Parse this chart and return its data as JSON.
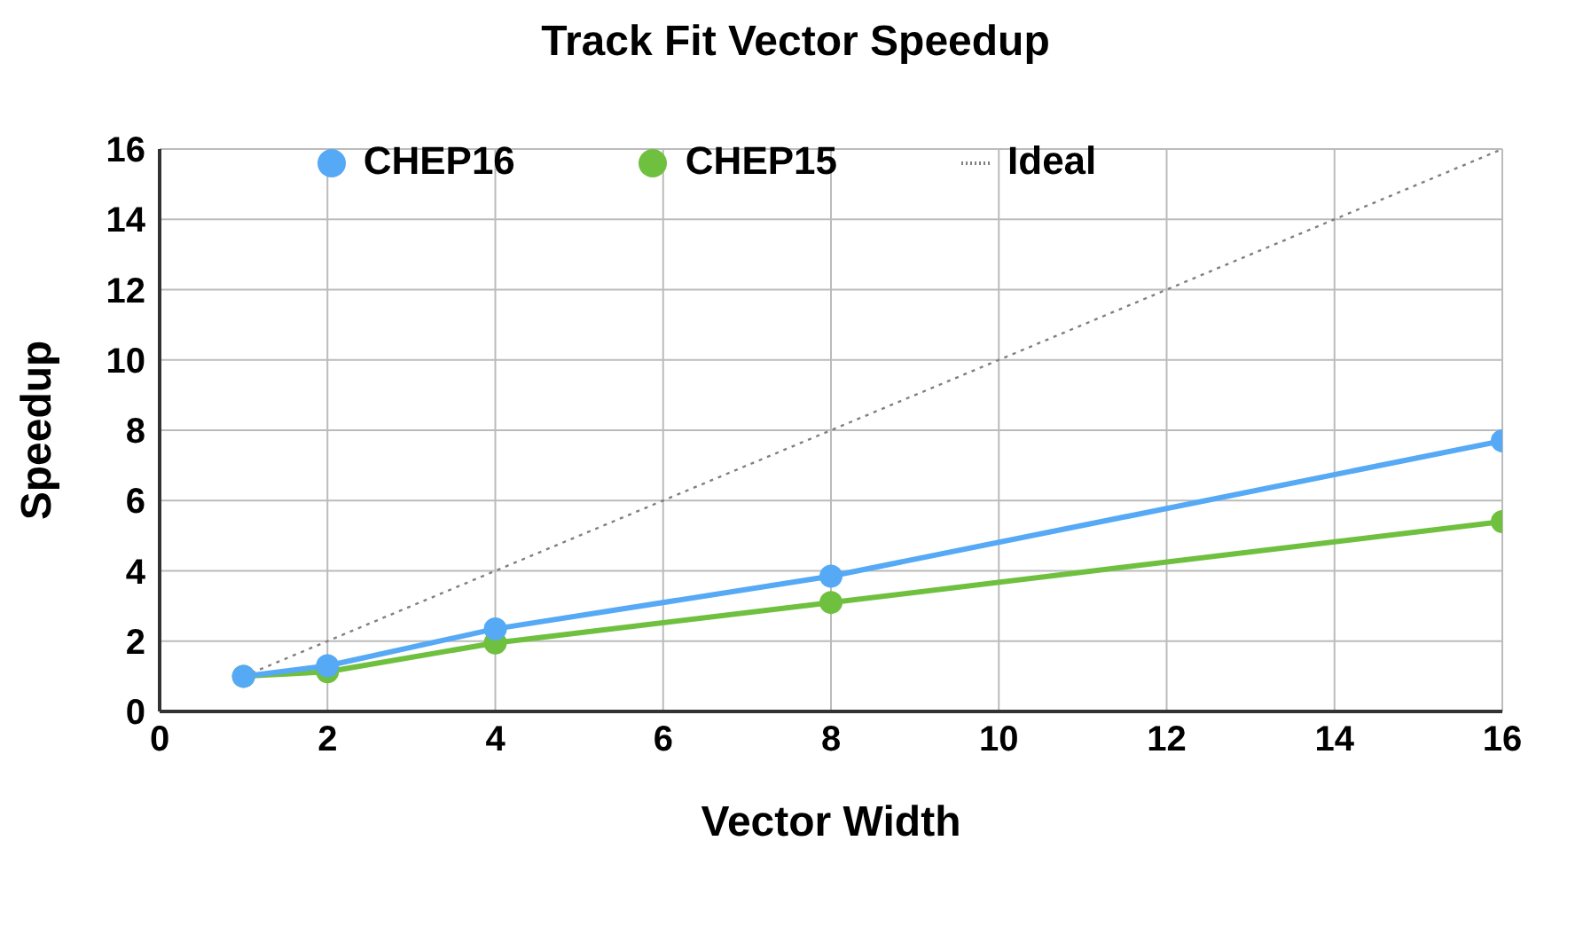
{
  "chart_data": {
    "type": "line",
    "title": "Track Fit Vector Speedup",
    "xlabel": "Vector Width",
    "ylabel": "Speedup",
    "x": [
      1,
      2,
      4,
      8,
      16
    ],
    "series": [
      {
        "name": "CHEP16",
        "color": "#55a9f5",
        "values": [
          1,
          1.3,
          2.35,
          3.85,
          7.7
        ],
        "marker": "circle",
        "line_style": "solid"
      },
      {
        "name": "CHEP15",
        "color": "#6fc03f",
        "values": [
          1,
          1.13,
          1.95,
          3.1,
          5.4
        ],
        "marker": "circle",
        "line_style": "solid"
      },
      {
        "name": "Ideal",
        "color": "#808080",
        "values": [
          1,
          2,
          4,
          8,
          16
        ],
        "marker": "none",
        "line_style": "dotted"
      }
    ],
    "xlim": [
      0,
      16
    ],
    "xticks": [
      0,
      2,
      4,
      6,
      8,
      10,
      12,
      14,
      16
    ],
    "ylim": [
      0,
      16
    ],
    "yticks": [
      0,
      2,
      4,
      6,
      8,
      10,
      12,
      14,
      16
    ],
    "grid": true,
    "legend": "top"
  }
}
